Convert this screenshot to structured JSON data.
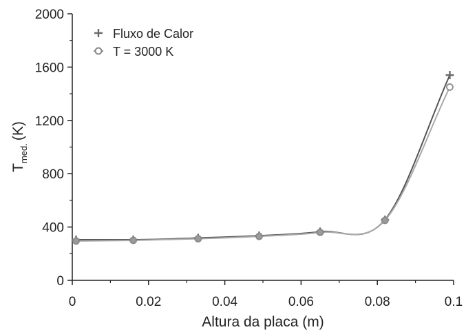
{
  "chart_data": {
    "type": "line",
    "title": "",
    "xlabel": "Altura da placa (m)",
    "ylabel": "T",
    "ylabel_subscript": "med.",
    "ylabel_unit": "(K)",
    "xlim": [
      0,
      0.1
    ],
    "ylim": [
      0,
      2000
    ],
    "x_ticks": [
      0,
      0.02,
      0.04,
      0.06,
      0.08,
      0.1
    ],
    "x_tick_labels": [
      "0",
      "0.02",
      "0.04",
      "0.06",
      "0.08",
      "0.1"
    ],
    "y_ticks": [
      0,
      400,
      800,
      1200,
      1600,
      2000
    ],
    "y_tick_labels": [
      "0",
      "400",
      "800",
      "1200",
      "1600",
      "2000"
    ],
    "grid": false,
    "legend_position": "top-left",
    "series": [
      {
        "name": "Fluxo de Calor",
        "marker": "plus",
        "color": "#6b6b6b",
        "x": [
          0.001,
          0.016,
          0.033,
          0.049,
          0.065,
          0.082,
          0.099
        ],
        "y": [
          305,
          305,
          318,
          335,
          365,
          455,
          1540
        ]
      },
      {
        "name": "T = 3000 K",
        "marker": "circle",
        "color": "#8a8a8a",
        "x": [
          0.001,
          0.016,
          0.033,
          0.049,
          0.065,
          0.082,
          0.099
        ],
        "y": [
          295,
          300,
          312,
          330,
          360,
          450,
          1450
        ]
      }
    ]
  }
}
